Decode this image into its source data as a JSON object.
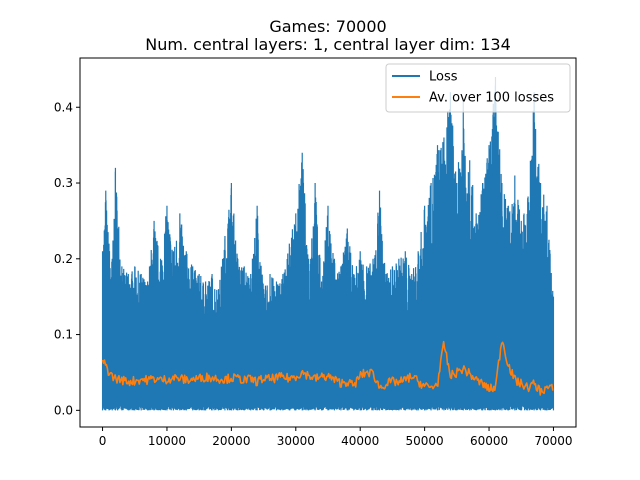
{
  "chart_data": {
    "type": "line",
    "title": [
      "Games: 70000",
      "Num. central layers: 1, central layer dim: 134"
    ],
    "xlabel": "",
    "ylabel": "",
    "xlim": [
      -3500,
      73500
    ],
    "ylim": [
      -0.022,
      0.465
    ],
    "xticks": [
      0,
      10000,
      20000,
      30000,
      40000,
      50000,
      60000,
      70000
    ],
    "xtick_labels": [
      "0",
      "10000",
      "20000",
      "30000",
      "40000",
      "50000",
      "60000",
      "70000"
    ],
    "yticks": [
      0.0,
      0.1,
      0.2,
      0.3,
      0.4
    ],
    "ytick_labels": [
      "0.0",
      "0.1",
      "0.2",
      "0.3",
      "0.4"
    ],
    "grid": false,
    "legend_position": "upper-right",
    "series": [
      {
        "name": "Loss",
        "color": "#1f77b4",
        "kind": "noisy-envelope",
        "x": [
          0,
          500,
          1000,
          1500,
          2000,
          3000,
          4000,
          5000,
          6000,
          7000,
          8000,
          9000,
          10000,
          11000,
          12000,
          13000,
          14000,
          15000,
          16000,
          17000,
          18000,
          19000,
          20000,
          21000,
          22000,
          23000,
          24000,
          25000,
          26000,
          27000,
          28000,
          29000,
          30000,
          31000,
          32000,
          33000,
          34000,
          35000,
          36000,
          37000,
          38000,
          39000,
          40000,
          41000,
          42000,
          43000,
          44000,
          45000,
          46000,
          47000,
          48000,
          49000,
          50000,
          51000,
          52000,
          53000,
          54000,
          55000,
          56000,
          57000,
          58000,
          59000,
          60000,
          61000,
          62000,
          63000,
          64000,
          65000,
          66000,
          67000,
          68000,
          69000,
          70000
        ],
        "y_max": [
          0.21,
          0.29,
          0.22,
          0.2,
          0.32,
          0.19,
          0.18,
          0.19,
          0.18,
          0.17,
          0.25,
          0.2,
          0.27,
          0.21,
          0.26,
          0.21,
          0.19,
          0.18,
          0.17,
          0.18,
          0.16,
          0.23,
          0.3,
          0.2,
          0.19,
          0.18,
          0.27,
          0.16,
          0.18,
          0.17,
          0.18,
          0.22,
          0.26,
          0.34,
          0.2,
          0.3,
          0.17,
          0.27,
          0.2,
          0.19,
          0.24,
          0.18,
          0.21,
          0.19,
          0.2,
          0.29,
          0.18,
          0.19,
          0.2,
          0.21,
          0.18,
          0.21,
          0.27,
          0.3,
          0.35,
          0.36,
          0.42,
          0.3,
          0.41,
          0.33,
          0.26,
          0.3,
          0.35,
          0.44,
          0.3,
          0.27,
          0.31,
          0.25,
          0.28,
          0.42,
          0.3,
          0.27,
          0.15
        ],
        "y_min": 0.0
      },
      {
        "name": "Av. over 100 losses",
        "color": "#ff7f0e",
        "x": [
          0,
          500,
          1000,
          1500,
          2000,
          3000,
          4000,
          5000,
          6000,
          7000,
          8000,
          9000,
          10000,
          11000,
          12000,
          13000,
          14000,
          15000,
          16000,
          17000,
          18000,
          19000,
          20000,
          21000,
          22000,
          23000,
          24000,
          25000,
          26000,
          27000,
          28000,
          29000,
          30000,
          31000,
          32000,
          33000,
          34000,
          35000,
          36000,
          37000,
          38000,
          39000,
          40000,
          41000,
          42000,
          43000,
          44000,
          45000,
          46000,
          47000,
          48000,
          49000,
          50000,
          51000,
          52000,
          53000,
          54000,
          55000,
          56000,
          57000,
          58000,
          59000,
          60000,
          61000,
          62000,
          63000,
          64000,
          65000,
          66000,
          67000,
          68000,
          69000,
          70000
        ],
        "values": [
          0.063,
          0.06,
          0.05,
          0.045,
          0.042,
          0.04,
          0.038,
          0.039,
          0.041,
          0.04,
          0.042,
          0.04,
          0.041,
          0.043,
          0.042,
          0.04,
          0.041,
          0.042,
          0.044,
          0.043,
          0.042,
          0.041,
          0.043,
          0.042,
          0.04,
          0.041,
          0.038,
          0.042,
          0.041,
          0.043,
          0.044,
          0.042,
          0.045,
          0.05,
          0.046,
          0.042,
          0.044,
          0.045,
          0.04,
          0.036,
          0.038,
          0.032,
          0.046,
          0.05,
          0.049,
          0.03,
          0.035,
          0.038,
          0.037,
          0.04,
          0.045,
          0.038,
          0.032,
          0.03,
          0.035,
          0.088,
          0.045,
          0.05,
          0.055,
          0.048,
          0.04,
          0.035,
          0.028,
          0.03,
          0.095,
          0.06,
          0.04,
          0.035,
          0.03,
          0.035,
          0.025,
          0.03,
          0.028
        ]
      }
    ]
  }
}
